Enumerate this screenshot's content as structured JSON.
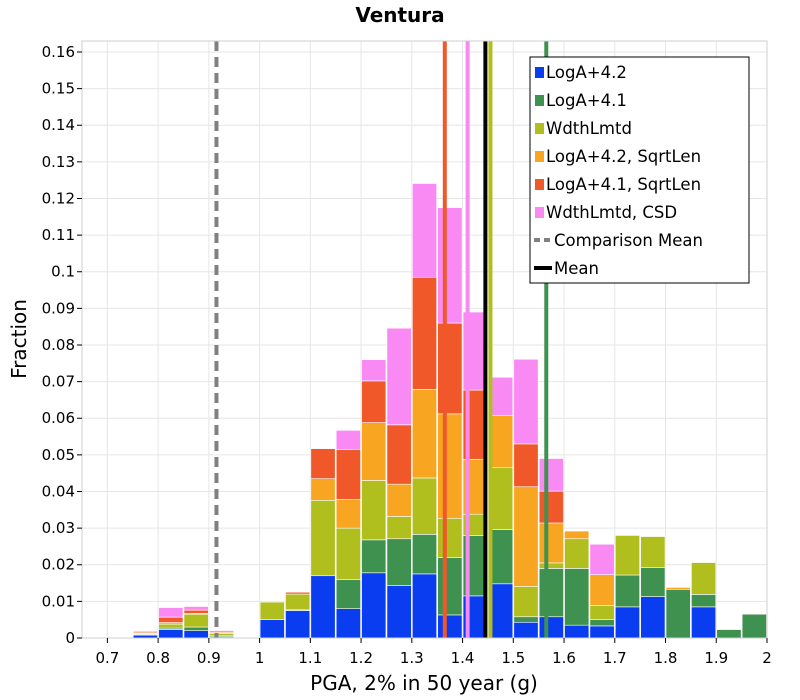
{
  "chart_data": {
    "type": "bar",
    "stacked": true,
    "title": "Ventura",
    "xlabel": "PGA, 2% in 50 year (g)",
    "ylabel": "Fraction",
    "xlim": [
      0.65,
      2.0
    ],
    "ylim": [
      0,
      0.163
    ],
    "x_ticks": [
      "0.7",
      "0.8",
      "0.9",
      "1",
      "1.1",
      "1.2",
      "1.3",
      "1.4",
      "1.5",
      "1.6",
      "1.7",
      "1.8",
      "1.9",
      "2"
    ],
    "y_ticks": [
      "0",
      "0.01",
      "0.02",
      "0.03",
      "0.04",
      "0.05",
      "0.06",
      "0.07",
      "0.08",
      "0.09",
      "0.1",
      "0.11",
      "0.12",
      "0.13",
      "0.14",
      "0.15",
      "0.16"
    ],
    "grid": true,
    "legend_position": "top-right",
    "bin_width": 0.05,
    "bin_centers": [
      0.725,
      0.775,
      0.825,
      0.875,
      0.925,
      0.975,
      1.025,
      1.075,
      1.125,
      1.175,
      1.225,
      1.275,
      1.325,
      1.375,
      1.425,
      1.475,
      1.525,
      1.575,
      1.625,
      1.675,
      1.725,
      1.775,
      1.825,
      1.875,
      1.925,
      1.975
    ],
    "series": [
      {
        "name": "LogA+4.2",
        "color": "#0a3cf0",
        "values": [
          0,
          0.0008,
          0.0023,
          0.002,
          0.0003,
          0,
          0.005,
          0.0075,
          0.017,
          0.008,
          0.0178,
          0.0143,
          0.0175,
          0.0063,
          0.0115,
          0.0148,
          0.0043,
          0.0058,
          0.0035,
          0.0033,
          0.0085,
          0.0113,
          0,
          0.0085,
          0,
          0
        ]
      },
      {
        "name": "LogA+4.1",
        "color": "#3f914f",
        "values": [
          0,
          0.0002,
          0.0004,
          0.001,
          0.0003,
          0,
          0,
          0.0002,
          0,
          0.008,
          0.009,
          0.0128,
          0.0108,
          0.0157,
          0.0165,
          0.0148,
          0.0015,
          0.0132,
          0.0155,
          0.0017,
          0.0087,
          0.0079,
          0.0133,
          0.0034,
          0.0023,
          0.0065
        ]
      },
      {
        "name": "WdthLmtd",
        "color": "#b0be1e",
        "values": [
          0,
          0.0002,
          0.0011,
          0.0035,
          0.0006,
          0,
          0.0048,
          0.0043,
          0.0206,
          0.014,
          0.0162,
          0.0061,
          0.0154,
          0.0107,
          0.0058,
          0.0169,
          0.0083,
          0.0015,
          0.0081,
          0.0039,
          0.0108,
          0.0085,
          0,
          0.0087,
          0,
          0
        ]
      },
      {
        "name": "LogA+4.2, SqrtLen",
        "color": "#f8a621",
        "values": [
          0,
          0.0002,
          0.0004,
          0.0002,
          0.0003,
          0,
          0,
          0,
          0.0059,
          0.0078,
          0.0158,
          0.0088,
          0.0242,
          0.0285,
          0.015,
          0.0142,
          0.0272,
          0.0109,
          0.0021,
          0.0084,
          0,
          0,
          0.0005,
          0,
          0,
          0
        ]
      },
      {
        "name": "LogA+4.1, SqrtLen",
        "color": "#f0582a",
        "values": [
          0,
          0.0003,
          0.0015,
          0.0009,
          0.0004,
          0,
          0,
          0.0005,
          0.0082,
          0.0137,
          0.0114,
          0.0162,
          0.0306,
          0.0248,
          0.0189,
          0,
          0.0117,
          0.0087,
          0,
          0,
          0,
          0,
          0.0002,
          0,
          0,
          0
        ]
      },
      {
        "name": "WdthLmtd, CSD",
        "color": "#f98af4",
        "values": [
          0,
          0.0003,
          0.0026,
          0.001,
          0.0002,
          0,
          0,
          0,
          0,
          0.0052,
          0.0058,
          0.0264,
          0.0256,
          0.0315,
          0.0213,
          0.0105,
          0.0231,
          0.0089,
          0,
          0.0083,
          0,
          0,
          0,
          0,
          0,
          0
        ]
      }
    ],
    "vertical_lines": [
      {
        "name": "LogA+4.1, SqrtLen",
        "x": 1.365,
        "color": "#f0582a",
        "style": "solid"
      },
      {
        "name": "WdthLmtd, CSD",
        "x": 1.41,
        "color": "#f98af4",
        "style": "solid"
      },
      {
        "name": "WdthLmtd",
        "x": 1.455,
        "color": "#b0be1e",
        "style": "solid"
      },
      {
        "name": "LogA+4.1",
        "x": 1.565,
        "color": "#3f914f",
        "style": "solid"
      },
      {
        "name": "Comparison Mean",
        "x": 0.915,
        "color": "#808080",
        "style": "dashed"
      },
      {
        "name": "Mean",
        "x": 1.445,
        "color": "#000000",
        "style": "solid"
      }
    ],
    "legend": [
      {
        "label": "LogA+4.2",
        "kind": "box",
        "color": "#0a3cf0"
      },
      {
        "label": "LogA+4.1",
        "kind": "box",
        "color": "#3f914f"
      },
      {
        "label": "WdthLmtd",
        "kind": "box",
        "color": "#b0be1e"
      },
      {
        "label": "LogA+4.2, SqrtLen",
        "kind": "box",
        "color": "#f8a621"
      },
      {
        "label": "LogA+4.1, SqrtLen",
        "kind": "box",
        "color": "#f0582a"
      },
      {
        "label": "WdthLmtd, CSD",
        "kind": "box",
        "color": "#f98af4"
      },
      {
        "label": "Comparison Mean",
        "kind": "dashed",
        "color": "#808080"
      },
      {
        "label": "Mean",
        "kind": "solid",
        "color": "#000000"
      }
    ]
  }
}
